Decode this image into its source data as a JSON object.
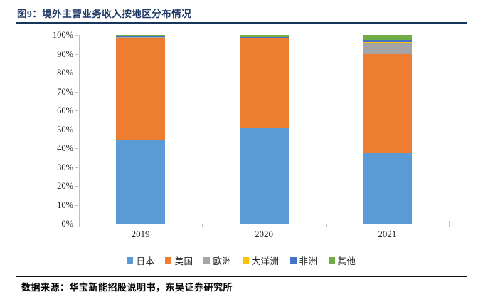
{
  "figure": {
    "title": "图9：境外主营业务收入按地区分布情况",
    "source": "数据来源：华宝新能招股说明书，东吴证券研究所"
  },
  "chart_data": {
    "type": "bar",
    "stacked": true,
    "title": "境外主营业务收入按地区分布情况",
    "categories": [
      "2019",
      "2020",
      "2021"
    ],
    "series": [
      {
        "name": "日本",
        "color": "#5B9BD5",
        "values": [
          44.5,
          50.5,
          37.5
        ]
      },
      {
        "name": "美国",
        "color": "#ED7D31",
        "values": [
          53.5,
          47.5,
          52.5
        ]
      },
      {
        "name": "欧洲",
        "color": "#A5A5A5",
        "values": [
          0.8,
          0.3,
          6.0
        ]
      },
      {
        "name": "大洋洲",
        "color": "#FFC000",
        "values": [
          0.2,
          0.2,
          0.3
        ]
      },
      {
        "name": "非洲",
        "color": "#4472C4",
        "values": [
          0.2,
          0.3,
          1.0
        ]
      },
      {
        "name": "其他",
        "color": "#70AD47",
        "values": [
          0.8,
          1.2,
          2.7
        ]
      }
    ],
    "y_ticks": [
      "0%",
      "10%",
      "20%",
      "30%",
      "40%",
      "50%",
      "60%",
      "70%",
      "80%",
      "90%",
      "100%"
    ],
    "ylim": [
      0,
      100
    ],
    "grid": false,
    "legend_position": "bottom",
    "axis_color": "#BFBFBF"
  }
}
